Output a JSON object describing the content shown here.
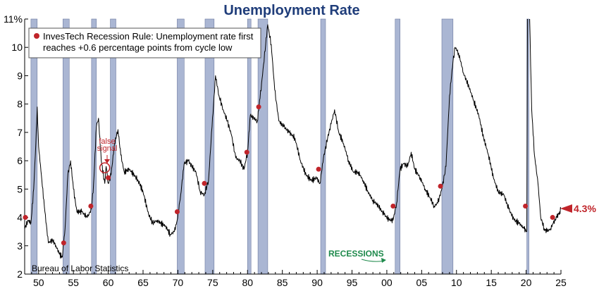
{
  "chart_data": {
    "type": "line",
    "title": "Unemployment Rate",
    "source": "Bureau of Labor Statistics",
    "legend": "InvesTech Recession Rule: Unemployment rate first reaches +0.6 percentage points from cycle low",
    "recessions_label": "RECESSIONS",
    "false_signal_label": "false signal",
    "current_value_label": "4.3%",
    "y_range": [
      2,
      11
    ],
    "x_range": [
      1948,
      2025
    ],
    "y_ticks": [
      2,
      3,
      4,
      5,
      6,
      7,
      8,
      9,
      10,
      11
    ],
    "y_tick_labels": [
      "2",
      "3",
      "4",
      "5",
      "6",
      "7",
      "8",
      "9",
      "10",
      "11%"
    ],
    "x_ticks": [
      1950,
      1955,
      1960,
      1965,
      1970,
      1975,
      1980,
      1985,
      1990,
      1995,
      2000,
      2005,
      2010,
      2015,
      2020,
      2025
    ],
    "x_tick_labels": [
      "50",
      "55",
      "60",
      "65",
      "70",
      "75",
      "80",
      "85",
      "90",
      "95",
      "00",
      "05",
      "10",
      "15",
      "20",
      "25"
    ],
    "recessions": [
      [
        1948.9,
        1949.8
      ],
      [
        1953.5,
        1954.4
      ],
      [
        1957.6,
        1958.3
      ],
      [
        1960.3,
        1961.1
      ],
      [
        1969.9,
        1970.9
      ],
      [
        1973.9,
        1975.2
      ],
      [
        1980.0,
        1980.5
      ],
      [
        1981.5,
        1982.9
      ],
      [
        1990.5,
        1991.2
      ],
      [
        2001.2,
        2001.9
      ],
      [
        2007.9,
        2009.5
      ],
      [
        2020.1,
        2020.4
      ]
    ],
    "series": [
      {
        "values": [
          [
            1948.0,
            3.6
          ],
          [
            1948.5,
            3.9
          ],
          [
            1948.9,
            3.8
          ],
          [
            1949.3,
            5.0
          ],
          [
            1949.6,
            6.6
          ],
          [
            1949.8,
            7.9
          ],
          [
            1950.0,
            6.5
          ],
          [
            1950.4,
            5.5
          ],
          [
            1950.9,
            4.2
          ],
          [
            1951.4,
            3.1
          ],
          [
            1952.0,
            3.2
          ],
          [
            1952.5,
            3.0
          ],
          [
            1953.0,
            2.7
          ],
          [
            1953.4,
            2.6
          ],
          [
            1953.8,
            3.6
          ],
          [
            1954.2,
            5.5
          ],
          [
            1954.6,
            6.0
          ],
          [
            1955.0,
            5.0
          ],
          [
            1955.5,
            4.2
          ],
          [
            1956.2,
            4.2
          ],
          [
            1957.0,
            4.0
          ],
          [
            1957.6,
            4.3
          ],
          [
            1957.9,
            5.2
          ],
          [
            1958.3,
            7.2
          ],
          [
            1958.6,
            7.5
          ],
          [
            1959.0,
            6.0
          ],
          [
            1959.5,
            5.2
          ],
          [
            1959.7,
            5.8
          ],
          [
            1960.0,
            5.2
          ],
          [
            1960.4,
            5.5
          ],
          [
            1960.9,
            6.6
          ],
          [
            1961.4,
            7.1
          ],
          [
            1961.8,
            6.2
          ],
          [
            1962.3,
            5.6
          ],
          [
            1963.0,
            5.7
          ],
          [
            1963.7,
            5.5
          ],
          [
            1964.3,
            5.3
          ],
          [
            1965.0,
            4.9
          ],
          [
            1965.8,
            4.1
          ],
          [
            1966.4,
            3.8
          ],
          [
            1967.0,
            3.9
          ],
          [
            1967.5,
            3.8
          ],
          [
            1968.2,
            3.7
          ],
          [
            1968.9,
            3.4
          ],
          [
            1969.5,
            3.5
          ],
          [
            1969.9,
            3.9
          ],
          [
            1970.4,
            4.8
          ],
          [
            1970.9,
            5.9
          ],
          [
            1971.5,
            6.0
          ],
          [
            1972.0,
            5.8
          ],
          [
            1972.6,
            5.6
          ],
          [
            1973.2,
            4.9
          ],
          [
            1973.8,
            4.8
          ],
          [
            1974.4,
            5.3
          ],
          [
            1974.9,
            7.2
          ],
          [
            1975.4,
            9.0
          ],
          [
            1975.9,
            8.3
          ],
          [
            1976.5,
            7.8
          ],
          [
            1977.1,
            7.4
          ],
          [
            1977.7,
            6.9
          ],
          [
            1978.3,
            6.1
          ],
          [
            1978.9,
            6.0
          ],
          [
            1979.5,
            5.7
          ],
          [
            1980.0,
            6.3
          ],
          [
            1980.4,
            7.6
          ],
          [
            1980.9,
            7.5
          ],
          [
            1981.4,
            7.4
          ],
          [
            1981.8,
            8.2
          ],
          [
            1982.3,
            9.4
          ],
          [
            1982.9,
            10.8
          ],
          [
            1983.4,
            10.1
          ],
          [
            1983.9,
            8.5
          ],
          [
            1984.5,
            7.4
          ],
          [
            1985.2,
            7.2
          ],
          [
            1986.0,
            7.0
          ],
          [
            1986.8,
            6.8
          ],
          [
            1987.6,
            6.0
          ],
          [
            1988.4,
            5.5
          ],
          [
            1989.2,
            5.3
          ],
          [
            1989.9,
            5.4
          ],
          [
            1990.4,
            5.2
          ],
          [
            1990.9,
            6.1
          ],
          [
            1991.5,
            6.8
          ],
          [
            1992.0,
            7.3
          ],
          [
            1992.5,
            7.8
          ],
          [
            1993.1,
            7.0
          ],
          [
            1993.8,
            6.6
          ],
          [
            1994.5,
            6.0
          ],
          [
            1995.2,
            5.6
          ],
          [
            1995.9,
            5.6
          ],
          [
            1996.6,
            5.3
          ],
          [
            1997.3,
            4.9
          ],
          [
            1998.0,
            4.6
          ],
          [
            1998.8,
            4.4
          ],
          [
            1999.6,
            4.1
          ],
          [
            2000.4,
            3.9
          ],
          [
            2000.9,
            3.9
          ],
          [
            2001.4,
            4.5
          ],
          [
            2001.9,
            5.7
          ],
          [
            2002.4,
            5.9
          ],
          [
            2003.0,
            5.8
          ],
          [
            2003.5,
            6.3
          ],
          [
            2004.0,
            5.7
          ],
          [
            2004.8,
            5.4
          ],
          [
            2005.5,
            5.0
          ],
          [
            2006.2,
            4.7
          ],
          [
            2006.8,
            4.4
          ],
          [
            2007.3,
            4.5
          ],
          [
            2007.9,
            5.0
          ],
          [
            2008.5,
            5.8
          ],
          [
            2009.0,
            8.3
          ],
          [
            2009.5,
            9.5
          ],
          [
            2009.8,
            10.0
          ],
          [
            2010.3,
            9.8
          ],
          [
            2011.0,
            9.1
          ],
          [
            2011.8,
            8.6
          ],
          [
            2012.5,
            8.1
          ],
          [
            2013.2,
            7.6
          ],
          [
            2013.9,
            6.8
          ],
          [
            2014.6,
            6.2
          ],
          [
            2015.3,
            5.4
          ],
          [
            2016.0,
            4.9
          ],
          [
            2016.8,
            4.8
          ],
          [
            2017.5,
            4.3
          ],
          [
            2018.3,
            3.9
          ],
          [
            2019.0,
            3.8
          ],
          [
            2019.7,
            3.6
          ],
          [
            2020.1,
            3.5
          ],
          [
            2020.25,
            14.7
          ],
          [
            2020.5,
            11.1
          ],
          [
            2020.8,
            7.8
          ],
          [
            2021.2,
            6.2
          ],
          [
            2021.7,
            5.2
          ],
          [
            2022.1,
            4.0
          ],
          [
            2022.6,
            3.6
          ],
          [
            2023.0,
            3.5
          ],
          [
            2023.5,
            3.6
          ],
          [
            2023.9,
            3.8
          ],
          [
            2024.4,
            4.0
          ],
          [
            2024.8,
            4.2
          ],
          [
            2025.0,
            4.3
          ]
        ]
      }
    ],
    "signal_points": [
      [
        1948.1,
        4.0
      ],
      [
        1953.6,
        3.1
      ],
      [
        1957.5,
        4.4
      ],
      [
        1960.0,
        5.4
      ],
      [
        1969.9,
        4.2
      ],
      [
        1973.8,
        5.2
      ],
      [
        1979.9,
        6.3
      ],
      [
        1981.6,
        7.9
      ],
      [
        1990.2,
        5.7
      ],
      [
        2000.9,
        4.4
      ],
      [
        2007.7,
        5.1
      ],
      [
        2019.9,
        4.4
      ],
      [
        2023.8,
        4.0
      ]
    ],
    "false_signal_point": [
      1959.5,
      5.75
    ],
    "current_value": [
      2025.0,
      4.3
    ]
  }
}
